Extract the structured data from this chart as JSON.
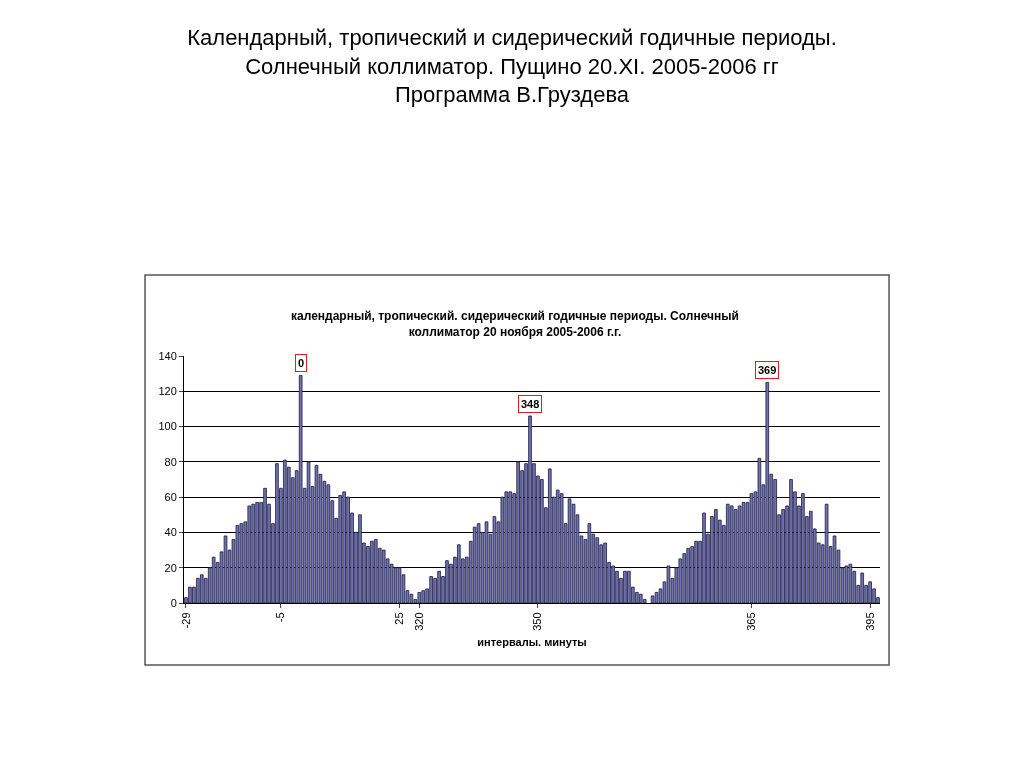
{
  "chart_data": {
    "type": "bar",
    "title": "Календарный, тропический и сидерический годичные периоды.\nСолнечный коллиматор. Пущино 20.XI. 2005-2006 гг\nПрограмма В.Груздева",
    "subtitle": "календарный, тропический. сидерический годичные периоды. Солнечный\nколлиматор 20 ноября 2005-2006 г.г.",
    "xlabel": "интервалы. минуты",
    "categories": [
      "-29",
      null,
      null,
      null,
      null,
      null,
      null,
      null,
      null,
      null,
      null,
      null,
      null,
      null,
      null,
      null,
      null,
      null,
      null,
      null,
      null,
      null,
      null,
      null,
      "-5",
      null,
      null,
      null,
      null,
      null,
      null,
      null,
      null,
      null,
      null,
      null,
      null,
      null,
      null,
      null,
      null,
      null,
      null,
      null,
      null,
      null,
      null,
      null,
      null,
      null,
      null,
      null,
      null,
      null,
      "25",
      null,
      null,
      null,
      null,
      "320",
      null,
      null,
      null,
      null,
      null,
      null,
      null,
      null,
      null,
      null,
      null,
      null,
      null,
      null,
      null,
      null,
      null,
      null,
      null,
      null,
      null,
      null,
      null,
      null,
      null,
      null,
      null,
      null,
      null,
      "350",
      null,
      null,
      null,
      null,
      null,
      null,
      null,
      null,
      null,
      null,
      null,
      null,
      null,
      null,
      null,
      null,
      null,
      null,
      null,
      null,
      null,
      null,
      null,
      null,
      null,
      null,
      null,
      null,
      null,
      null,
      null,
      null,
      null,
      null,
      null,
      null,
      null,
      null,
      null,
      null,
      null,
      null,
      null,
      null,
      null,
      null,
      null,
      null,
      null,
      null,
      null,
      null,
      null,
      "365",
      null,
      null,
      null,
      null,
      null,
      null,
      null,
      null,
      null,
      null,
      null,
      null,
      null,
      null,
      null,
      null,
      null,
      null,
      null,
      null,
      null,
      null,
      null,
      null,
      null,
      null,
      null,
      null,
      null,
      "395",
      null,
      null
    ],
    "values": [
      3,
      9,
      9,
      14,
      16,
      14,
      20,
      26,
      23,
      29,
      38,
      30,
      36,
      44,
      45,
      46,
      55,
      56,
      57,
      57,
      65,
      56,
      45,
      79,
      65,
      81,
      77,
      71,
      75,
      129,
      65,
      80,
      66,
      78,
      73,
      69,
      67,
      58,
      48,
      61,
      63,
      60,
      51,
      40,
      50,
      34,
      32,
      35,
      36,
      31,
      30,
      25,
      22,
      20,
      20,
      16,
      7,
      5,
      2,
      6,
      7,
      8,
      15,
      14,
      18,
      15,
      24,
      22,
      26,
      33,
      25,
      26,
      35,
      43,
      45,
      40,
      46,
      39,
      49,
      46,
      60,
      63,
      63,
      62,
      80,
      75,
      79,
      106,
      79,
      72,
      70,
      54,
      76,
      60,
      64,
      62,
      45,
      59,
      56,
      50,
      38,
      36,
      45,
      39,
      37,
      33,
      34,
      23,
      21,
      18,
      14,
      18,
      18,
      9,
      6,
      5,
      2,
      0,
      4,
      6,
      8,
      12,
      21,
      14,
      20,
      25,
      28,
      31,
      32,
      35,
      35,
      51,
      39,
      49,
      53,
      47,
      44,
      56,
      55,
      53,
      55,
      57,
      57,
      62,
      63,
      82,
      67,
      125,
      73,
      70,
      50,
      53,
      55,
      70,
      63,
      55,
      62,
      49,
      52,
      42,
      34,
      33,
      56,
      32,
      38,
      30,
      20,
      21,
      22,
      18,
      10,
      17,
      10,
      12,
      8,
      3
    ],
    "annotations": [
      {
        "text": "0",
        "y": 129
      },
      {
        "text": "348",
        "y": 106
      },
      {
        "text": "369",
        "y": 125
      }
    ],
    "color": "#7272b0",
    "ylim": [
      0,
      140
    ],
    "yticks": [
      0,
      20,
      40,
      60,
      80,
      100,
      120,
      140
    ],
    "grid": "y",
    "legend": false
  }
}
